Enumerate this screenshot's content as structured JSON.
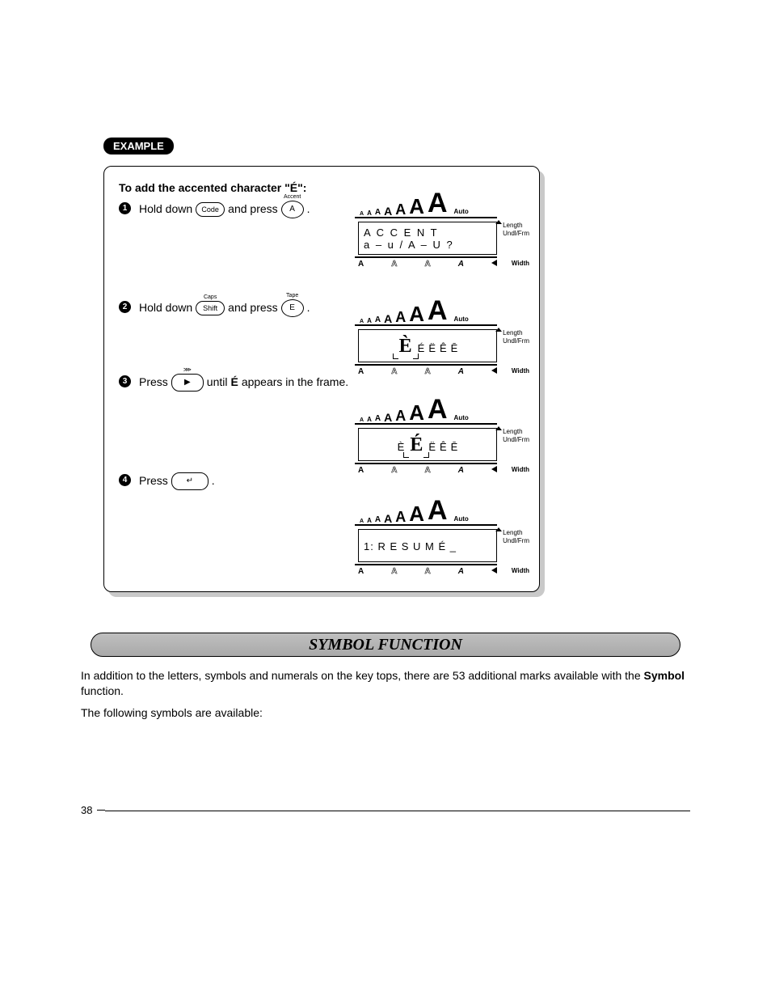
{
  "page": {
    "number": "38",
    "example_label": "EXAMPLE",
    "example_title": "To add the accented character \"É\":",
    "steps": {
      "s1": {
        "num": "1",
        "t1": "Hold down",
        "key1": "Code",
        "t2": "and press",
        "key2": "A",
        "key2_above": "Accent",
        "t3": "."
      },
      "s2": {
        "num": "2",
        "t1": "Hold down",
        "key1": "Shift",
        "key1_above": "Caps",
        "t2": "and press",
        "key2": "E",
        "key2_above": "Tape",
        "t3": "."
      },
      "s3": {
        "num": "3",
        "t1": "Press",
        "key1": "▶",
        "key1_above": "⋙",
        "t2": "until",
        "bold": "É",
        "t3": "appears in the frame."
      },
      "s4": {
        "num": "4",
        "t1": "Press",
        "key1": "↵",
        "t2": "."
      }
    },
    "lcd": {
      "size_chars": [
        "A",
        "A",
        "A",
        "A",
        "A",
        "A",
        "A"
      ],
      "size_font_sizes": [
        7,
        8,
        10,
        14,
        18,
        26,
        34
      ],
      "auto_label": "Auto",
      "side": {
        "length": "Length",
        "undl": "Undl/Frm"
      },
      "indicators": [
        "A",
        "A",
        "A",
        "A"
      ],
      "width_label": "Width",
      "screen1": {
        "line1": "A C C E N T",
        "line2": "a – u / A – U ?"
      },
      "screen2": {
        "sel": "È",
        "rest": [
          "É",
          "Ë",
          "Ê",
          "Ē"
        ]
      },
      "screen3": {
        "pre": "È",
        "sel": "É",
        "rest": [
          "Ë",
          "Ê",
          "Ē"
        ]
      },
      "screen4": {
        "line": "1: R E S U M É _"
      }
    },
    "section_title": "SYMBOL FUNCTION",
    "body": {
      "p1a": "In addition to the letters, symbols and numerals on the key tops, there are 53 additional marks available with the ",
      "p1b": "Symbol",
      "p1c": " function.",
      "p2": "The following symbols are available:"
    }
  }
}
